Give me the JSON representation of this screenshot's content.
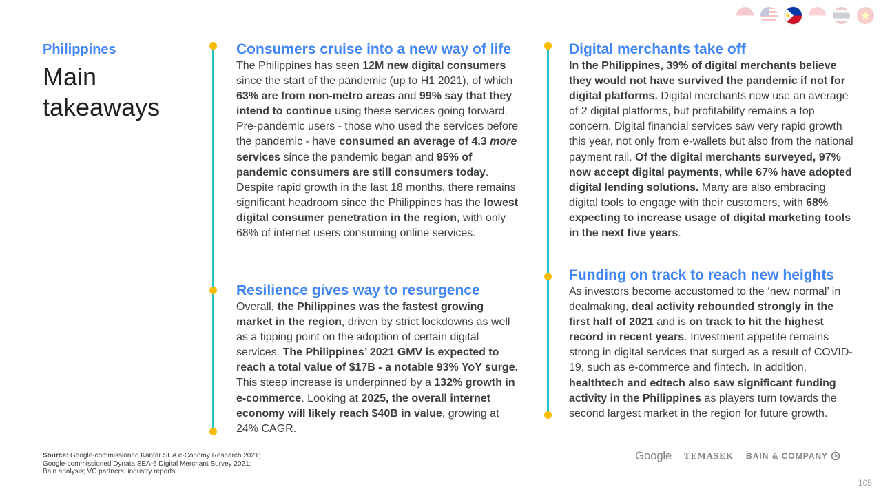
{
  "header": {
    "country": "Philippines",
    "title": "Main takeaways"
  },
  "flags": [
    {
      "name": "indonesia-flag-icon",
      "active": false
    },
    {
      "name": "malaysia-flag-icon",
      "active": false
    },
    {
      "name": "philippines-flag-icon",
      "active": true
    },
    {
      "name": "singapore-flag-icon",
      "active": false
    },
    {
      "name": "thailand-flag-icon",
      "active": false
    },
    {
      "name": "vietnam-flag-icon",
      "active": false
    }
  ],
  "sections": {
    "consumers": {
      "heading": "Consumers cruise into a new way of life",
      "body": [
        {
          "t": "The Philippines has seen ",
          "b": false
        },
        {
          "t": "12M new digital consumers",
          "b": true
        },
        {
          "t": " since the start of the pandemic (up to H1 2021), of which ",
          "b": false
        },
        {
          "t": "63% are from non-metro areas",
          "b": true
        },
        {
          "t": " and ",
          "b": false
        },
        {
          "t": "99% say that they intend to continue",
          "b": true
        },
        {
          "t": " using these services going forward. Pre-pandemic users - those who used the services before the pandemic - have ",
          "b": false
        },
        {
          "t": "consumed an average of 4.3 ",
          "b": true
        },
        {
          "t": "more",
          "b": true,
          "i": true
        },
        {
          "t": " services",
          "b": true
        },
        {
          "t": " since the pandemic began and ",
          "b": false
        },
        {
          "t": "95% of pandemic consumers are still consumers today",
          "b": true
        },
        {
          "t": ". Despite rapid growth in the last 18 months, there remains significant headroom since the Philippines has the ",
          "b": false
        },
        {
          "t": "lowest digital consumer penetration in the region",
          "b": true
        },
        {
          "t": ", with only 68% of internet users consuming online services.",
          "b": false
        }
      ]
    },
    "resilience": {
      "heading": "Resilience gives way to resurgence",
      "body": [
        {
          "t": "Overall, ",
          "b": false
        },
        {
          "t": "the Philippines was the fastest growing market in the region",
          "b": true
        },
        {
          "t": ", driven by strict lockdowns as well as a tipping point on the adoption of certain digital services. ",
          "b": false
        },
        {
          "t": "The Philippines’ 2021 GMV is expected to reach a total value of $17B - a notable 93% YoY surge.",
          "b": true
        },
        {
          "t": " This steep increase is underpinned by a ",
          "b": false
        },
        {
          "t": "132% growth in e-commerce",
          "b": true
        },
        {
          "t": ". Looking at ",
          "b": false
        },
        {
          "t": "2025, the overall internet economy will likely reach $40B in value",
          "b": true
        },
        {
          "t": ", growing at 24% CAGR.",
          "b": false
        }
      ]
    },
    "merchants": {
      "heading": "Digital merchants take off",
      "body": [
        {
          "t": "In the Philippines, 39% of digital merchants believe they would not have survived the pandemic if not for digital platforms.",
          "b": true
        },
        {
          "t": " Digital merchants now use an average of 2 digital platforms, but profitability remains a top concern. Digital financial services saw very rapid growth this year, not only from e-wallets but also from the national payment rail. ",
          "b": false
        },
        {
          "t": "Of the digital merchants surveyed, 97% now accept digital payments, while 67% have adopted digital lending solutions.",
          "b": true
        },
        {
          "t": " Many are also embracing digital tools to engage with their customers, with ",
          "b": false
        },
        {
          "t": "68% expecting to increase usage of digital marketing tools in the next five years",
          "b": true
        },
        {
          "t": ".",
          "b": false
        }
      ]
    },
    "funding": {
      "heading": "Funding on track to reach new heights",
      "body": [
        {
          "t": "As investors become accustomed to the ‘new normal’ in dealmaking, ",
          "b": false
        },
        {
          "t": "deal activity rebounded strongly in the first half of 2021",
          "b": true
        },
        {
          "t": " and is ",
          "b": false
        },
        {
          "t": "on track to hit the highest record in recent years",
          "b": true
        },
        {
          "t": ". Investment appetite remains strong in digital services that surged as a result of COVID-19, such as e-commerce and fintech. In addition, ",
          "b": false
        },
        {
          "t": "healthtech and edtech also saw significant funding activity in the Philippines",
          "b": true
        },
        {
          "t": " as players turn towards the second largest market in the region for future growth.",
          "b": false
        }
      ]
    }
  },
  "footer": {
    "source_label": "Source:",
    "source_line1": " Google-commissioned Kantar SEA e-Conomy Research 2021;",
    "source_line2": "Google-commissioned Dynata SEA-6 Digital Merchant Survey 2021;",
    "source_line3": "Bain analysis; VC partners; industry reports.",
    "logo_google": "Google",
    "logo_temasek": "TEMASEK",
    "logo_bain": "BAIN & COMPANY",
    "page_number": "105"
  },
  "colors": {
    "accent_blue": "#4285f4",
    "timeline_teal": "#28c3c6",
    "dot_yellow": "#fbbc04"
  }
}
